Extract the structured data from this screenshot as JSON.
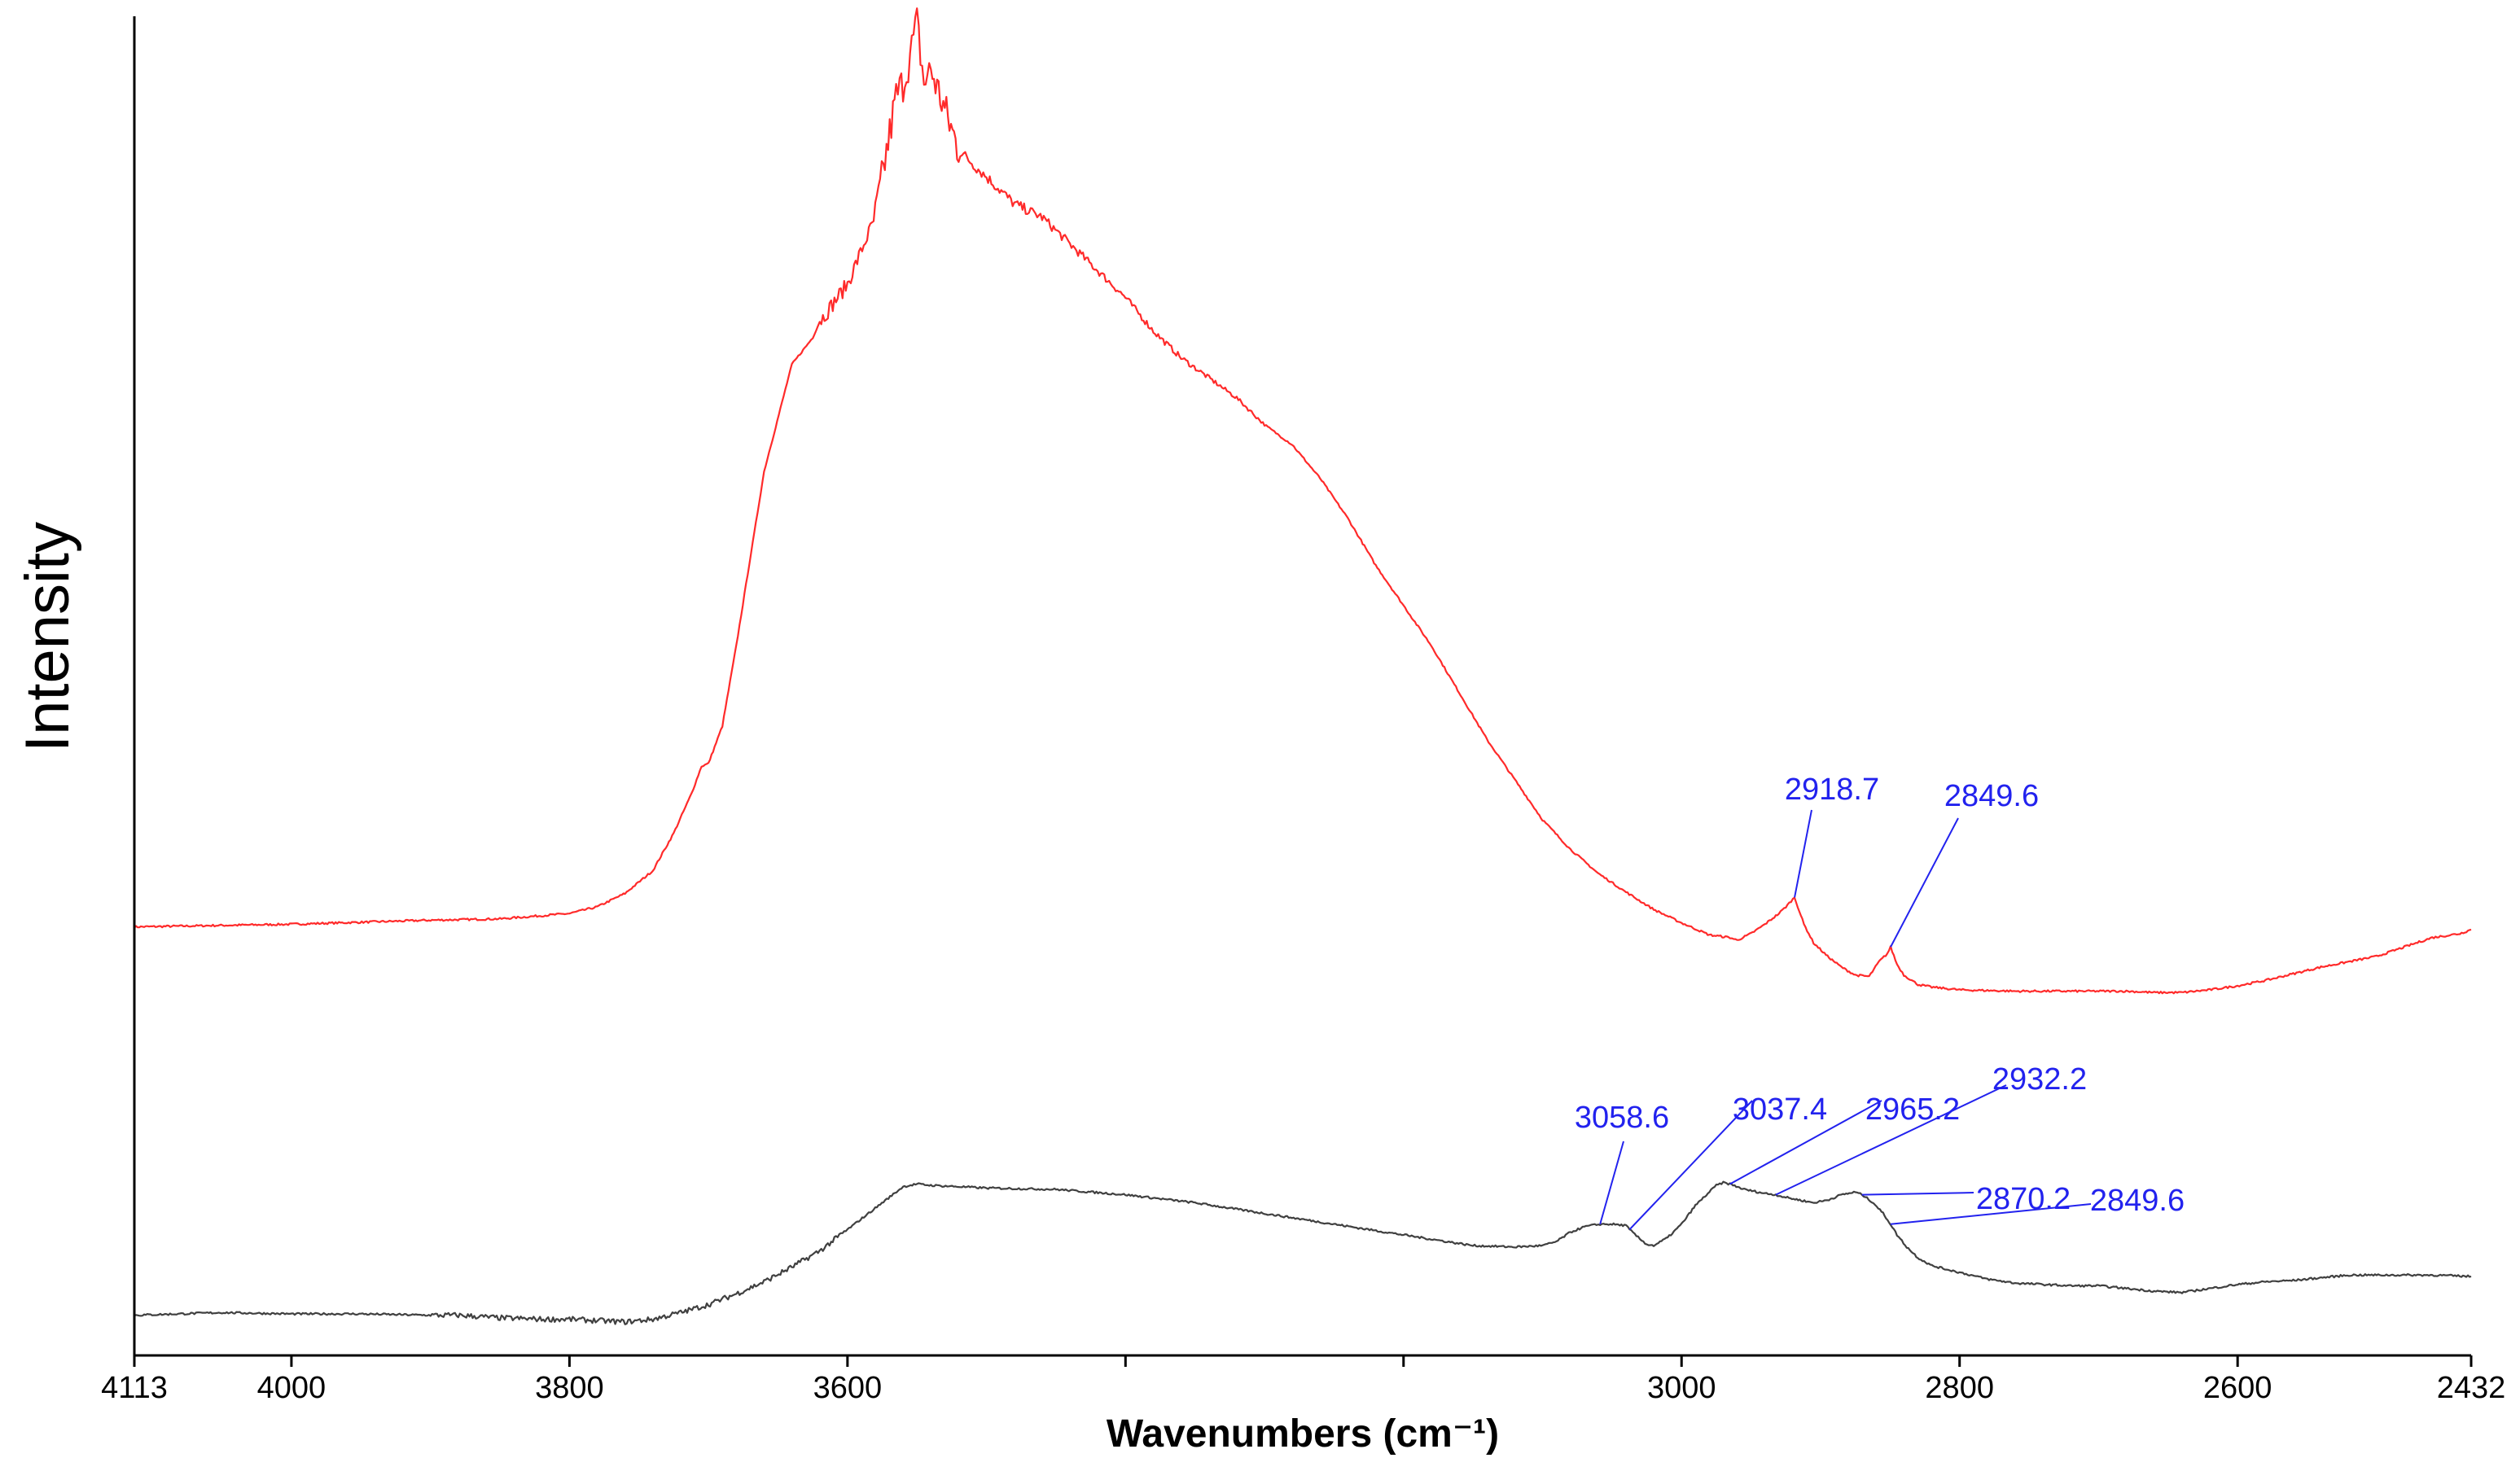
{
  "chart_data": {
    "type": "line",
    "title": "",
    "xlabel": "Wavenumbers (cm⁻¹)",
    "ylabel": "Intensity",
    "xlim": [
      4113,
      2432
    ],
    "x_reversed": true,
    "ylim": [
      0,
      1
    ],
    "y_ticks_shown": false,
    "grid": false,
    "legend": "none",
    "x_ticks": [
      4113,
      4000,
      3800,
      3600,
      3400,
      3200,
      3000,
      2800,
      2600,
      2432
    ],
    "x_tick_labels": [
      "4113",
      "4000",
      "3800",
      "3600",
      "",
      "",
      "3000",
      "2800",
      "2600",
      "2432"
    ],
    "colors": {
      "upper": "#ff2a2a",
      "lower": "#404040",
      "annotation": "#2222ee",
      "axis": "#000000"
    },
    "series": [
      {
        "color": "#ff2a2a",
        "x": [
          4113,
          4000,
          3900,
          3850,
          3800,
          3780,
          3760,
          3740,
          3725,
          3712,
          3705,
          3700,
          3690,
          3680,
          3660,
          3640,
          3625,
          3620,
          3600,
          3580,
          3565,
          3560,
          3555,
          3550,
          3545,
          3540,
          3530,
          3520,
          3500,
          3480,
          3460,
          3440,
          3420,
          3400,
          3380,
          3360,
          3340,
          3320,
          3300,
          3280,
          3260,
          3240,
          3220,
          3200,
          3180,
          3160,
          3140,
          3120,
          3100,
          3080,
          3060,
          3040,
          3020,
          3000,
          2980,
          2965,
          2960,
          2950,
          2940,
          2930,
          2925,
          2918.7,
          2912,
          2905,
          2895,
          2885,
          2875,
          2865,
          2858,
          2852,
          2849.6,
          2845,
          2840,
          2830,
          2820,
          2800,
          2760,
          2720,
          2680,
          2660,
          2640,
          2620,
          2600,
          2580,
          2560,
          2540,
          2520,
          2500,
          2480,
          2460,
          2440,
          2432
        ],
        "y": [
          0.32,
          0.322,
          0.325,
          0.326,
          0.33,
          0.335,
          0.345,
          0.362,
          0.39,
          0.42,
          0.44,
          0.442,
          0.47,
          0.53,
          0.66,
          0.74,
          0.76,
          0.772,
          0.8,
          0.85,
          0.94,
          0.95,
          0.97,
          0.995,
          0.95,
          0.96,
          0.93,
          0.9,
          0.88,
          0.86,
          0.85,
          0.83,
          0.81,
          0.79,
          0.765,
          0.745,
          0.73,
          0.715,
          0.695,
          0.68,
          0.655,
          0.625,
          0.59,
          0.56,
          0.53,
          0.495,
          0.46,
          0.43,
          0.4,
          0.378,
          0.36,
          0.346,
          0.333,
          0.323,
          0.314,
          0.312,
          0.31,
          0.315,
          0.322,
          0.33,
          0.335,
          0.342,
          0.322,
          0.308,
          0.298,
          0.29,
          0.284,
          0.283,
          0.294,
          0.3,
          0.305,
          0.292,
          0.284,
          0.277,
          0.275,
          0.273,
          0.272,
          0.272,
          0.272,
          0.271,
          0.271,
          0.273,
          0.276,
          0.28,
          0.285,
          0.29,
          0.294,
          0.298,
          0.305,
          0.312,
          0.315,
          0.318
        ]
      },
      {
        "color": "#404040",
        "x": [
          4113,
          4050,
          4000,
          3950,
          3900,
          3880,
          3850,
          3820,
          3800,
          3780,
          3760,
          3740,
          3720,
          3700,
          3680,
          3660,
          3640,
          3620,
          3600,
          3580,
          3560,
          3550,
          3540,
          3500,
          3450,
          3400,
          3350,
          3300,
          3250,
          3200,
          3150,
          3120,
          3100,
          3090,
          3080,
          3070,
          3065,
          3058.6,
          3050,
          3040,
          3037.4,
          3030,
          3025,
          3020,
          3010,
          3000,
          2990,
          2980,
          2975,
          2970,
          2965.2,
          2955,
          2945,
          2940,
          2932.2,
          2925,
          2915,
          2905,
          2895,
          2885,
          2875,
          2870.2,
          2862,
          2855,
          2849.6,
          2845,
          2838,
          2830,
          2820,
          2800,
          2780,
          2760,
          2740,
          2720,
          2700,
          2680,
          2660,
          2640,
          2620,
          2600,
          2580,
          2560,
          2540,
          2520,
          2500,
          2480,
          2460,
          2432
        ],
        "y": [
          0.03,
          0.032,
          0.031,
          0.031,
          0.03,
          0.03,
          0.028,
          0.027,
          0.027,
          0.026,
          0.025,
          0.027,
          0.032,
          0.038,
          0.046,
          0.055,
          0.066,
          0.078,
          0.094,
          0.11,
          0.126,
          0.128,
          0.127,
          0.125,
          0.124,
          0.12,
          0.114,
          0.106,
          0.098,
          0.09,
          0.082,
          0.081,
          0.082,
          0.085,
          0.092,
          0.096,
          0.097,
          0.098,
          0.098,
          0.097,
          0.094,
          0.087,
          0.083,
          0.082,
          0.088,
          0.098,
          0.112,
          0.122,
          0.127,
          0.129,
          0.128,
          0.124,
          0.122,
          0.121,
          0.12,
          0.118,
          0.116,
          0.114,
          0.116,
          0.12,
          0.122,
          0.12,
          0.114,
          0.106,
          0.098,
          0.09,
          0.081,
          0.073,
          0.067,
          0.062,
          0.057,
          0.054,
          0.053,
          0.052,
          0.052,
          0.05,
          0.048,
          0.047,
          0.05,
          0.053,
          0.055,
          0.056,
          0.058,
          0.06,
          0.06,
          0.06,
          0.06,
          0.059
        ]
      }
    ],
    "annotations": [
      {
        "text": "2918.7",
        "x": 2918.7,
        "y": 0.342,
        "series": 0
      },
      {
        "text": "2849.6",
        "x": 2849.6,
        "y": 0.305,
        "series": 0
      },
      {
        "text": "3058.6",
        "x": 3058.6,
        "y": 0.098,
        "series": 1
      },
      {
        "text": "3037.4",
        "x": 3037.4,
        "y": 0.094,
        "series": 1
      },
      {
        "text": "2965.2",
        "x": 2965.2,
        "y": 0.128,
        "series": 1
      },
      {
        "text": "2932.2",
        "x": 2932.2,
        "y": 0.12,
        "series": 1
      },
      {
        "text": "2870.2",
        "x": 2870.2,
        "y": 0.12,
        "series": 1
      },
      {
        "text": "2849.6",
        "x": 2849.6,
        "y": 0.098,
        "series": 1
      }
    ]
  }
}
